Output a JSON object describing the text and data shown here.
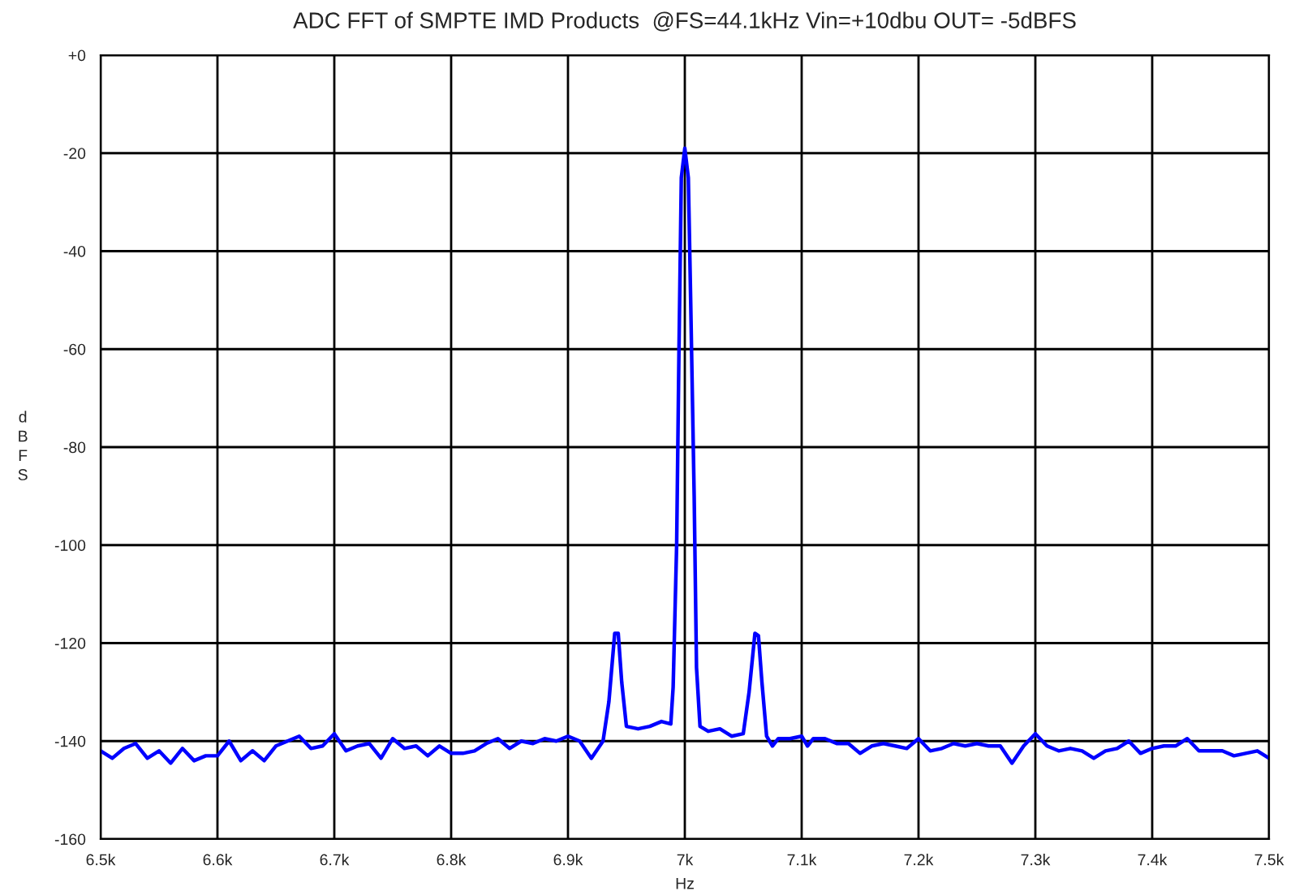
{
  "chart_data": {
    "type": "line",
    "title": "ADC FFT of SMPTE IMD Products  @FS=44.1kHz Vin=+10dbu OUT= -5dBFS",
    "xlabel": "Hz",
    "ylabel": "dBFS",
    "series": [
      {
        "color": "#0000ff",
        "x": [
          6500,
          6510,
          6520,
          6530,
          6540,
          6550,
          6560,
          6570,
          6580,
          6590,
          6600,
          6610,
          6620,
          6630,
          6640,
          6650,
          6660,
          6670,
          6680,
          6690,
          6700,
          6710,
          6720,
          6730,
          6740,
          6750,
          6760,
          6770,
          6780,
          6790,
          6800,
          6810,
          6820,
          6830,
          6840,
          6850,
          6860,
          6870,
          6880,
          6890,
          6900,
          6910,
          6920,
          6930,
          6935,
          6940,
          6943,
          6946,
          6950,
          6960,
          6970,
          6980,
          6988,
          6990,
          6993,
          6995,
          6997,
          7000,
          7003,
          7005,
          7008,
          7010,
          7013,
          7020,
          7030,
          7040,
          7050,
          7055,
          7060,
          7063,
          7066,
          7070,
          7075,
          7080,
          7090,
          7100,
          7105,
          7110,
          7120,
          7130,
          7140,
          7150,
          7160,
          7170,
          7180,
          7190,
          7200,
          7210,
          7220,
          7230,
          7240,
          7250,
          7260,
          7270,
          7280,
          7290,
          7300,
          7310,
          7320,
          7330,
          7340,
          7350,
          7360,
          7370,
          7380,
          7390,
          7400,
          7410,
          7420,
          7430,
          7440,
          7450,
          7460,
          7470,
          7480,
          7490,
          7500
        ],
        "values": [
          -142,
          -143.5,
          -141.5,
          -140.5,
          -143.5,
          -142,
          -144.5,
          -141.5,
          -144,
          -143,
          -143,
          -140,
          -144,
          -142,
          -144,
          -141,
          -140,
          -139,
          -141.5,
          -141,
          -138.5,
          -142,
          -141,
          -140.5,
          -143.5,
          -139.5,
          -141.5,
          -141,
          -143,
          -141,
          -142.5,
          -142.5,
          -142,
          -140.5,
          -139.5,
          -141.5,
          -140,
          -140.5,
          -139.5,
          -140,
          -139,
          -140,
          -143.5,
          -140,
          -132,
          -118,
          -118,
          -128,
          -137,
          -137.5,
          -137,
          -136,
          -136.5,
          -129,
          -100,
          -60,
          -25,
          -19,
          -25,
          -50,
          -90,
          -125,
          -137,
          -138,
          -137.5,
          -139,
          -138.5,
          -130,
          -118,
          -118.5,
          -128,
          -139,
          -141,
          -139.5,
          -139.5,
          -139,
          -141,
          -139.5,
          -139.5,
          -140.5,
          -140.5,
          -142.5,
          -141,
          -140.5,
          -141,
          -141.5,
          -139.5,
          -142,
          -141.5,
          -140.5,
          -141,
          -140.5,
          -141,
          -141,
          -144.5,
          -141,
          -138.5,
          -141,
          -142,
          -141.5,
          -142,
          -143.5,
          -142,
          -141.5,
          -140,
          -142.5,
          -141.5,
          -141,
          -141,
          -139.5,
          -142,
          -142,
          -142,
          -143,
          -142.5,
          -142,
          -143.5
        ]
      }
    ],
    "xlim": [
      6500,
      7500
    ],
    "xticks": [
      {
        "value": 6500,
        "label": "6.5k"
      },
      {
        "value": 6600,
        "label": "6.6k"
      },
      {
        "value": 6700,
        "label": "6.7k"
      },
      {
        "value": 6800,
        "label": "6.8k"
      },
      {
        "value": 6900,
        "label": "6.9k"
      },
      {
        "value": 7000,
        "label": "7k"
      },
      {
        "value": 7100,
        "label": "7.1k"
      },
      {
        "value": 7200,
        "label": "7.2k"
      },
      {
        "value": 7300,
        "label": "7.3k"
      },
      {
        "value": 7400,
        "label": "7.4k"
      },
      {
        "value": 7500,
        "label": "7.5k"
      }
    ],
    "ylim": [
      -160,
      0
    ],
    "yticks": [
      -160,
      -140,
      -120,
      -100,
      -80,
      -60,
      -40,
      -20,
      {
        "value": 0,
        "label": "+0"
      }
    ],
    "grid": true,
    "legend": false,
    "marker": "none",
    "line_style": "solid"
  }
}
